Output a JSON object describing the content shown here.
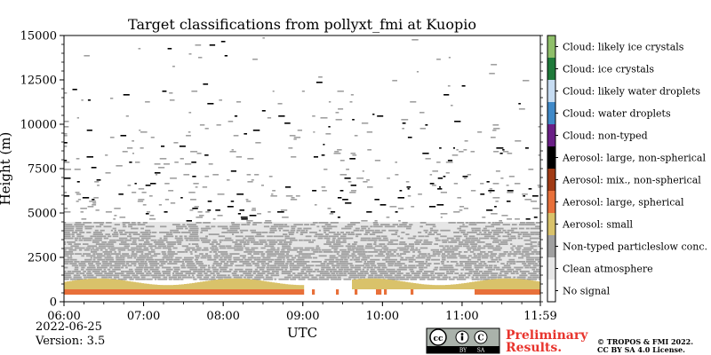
{
  "chart_data": {
    "type": "heatmap",
    "title": "Target classifications from pollyxt_fmi at Kuopio",
    "xlabel": "UTC",
    "ylabel": "Height (m)",
    "x_ticks": [
      "06:00",
      "07:00",
      "08:00",
      "09:00",
      "10:00",
      "11:00",
      "11:59"
    ],
    "y_ticks": [
      "0",
      "2500",
      "5000",
      "7500",
      "10000",
      "12500",
      "15000"
    ],
    "x_range_hours": [
      6.0,
      11.9833
    ],
    "y_range": [
      0,
      15000
    ],
    "layers": [
      {
        "class": "Aerosol: large, spherical",
        "height_range": [
          400,
          700
        ]
      },
      {
        "class": "Aerosol: small",
        "height_range": [
          700,
          1250
        ]
      },
      {
        "class": "Non-typed particleslow conc.",
        "height_range": [
          1250,
          4500
        ],
        "coverage": "dense"
      },
      {
        "class": "Non-typed particleslow conc.",
        "height_range": [
          4500,
          15000
        ],
        "coverage": "sparse"
      }
    ],
    "legend": {
      "position": "right",
      "entries": [
        {
          "label": "Cloud: likely ice crystals",
          "color": "#8fbf6a"
        },
        {
          "label": "Cloud: ice crystals",
          "color": "#1f7a3a"
        },
        {
          "label": "Cloud: likely water droplets",
          "color": "#c6dcf2"
        },
        {
          "label": "Cloud: water droplets",
          "color": "#3f89c8"
        },
        {
          "label": "Cloud: non-typed",
          "color": "#6a1f86"
        },
        {
          "label": "Aerosol: large, non-spherical",
          "color": "#000000"
        },
        {
          "label": "Aerosol: mix., non-spherical",
          "color": "#a13a14"
        },
        {
          "label": "Aerosol: large, spherical",
          "color": "#e8703a"
        },
        {
          "label": "Aerosol: small",
          "color": "#d9c26a"
        },
        {
          "label": "Non-typed particleslow conc.",
          "color": "#a0a0a0"
        },
        {
          "label": "Clean atmosphere",
          "color": "#e6e6e6"
        },
        {
          "label": "No signal",
          "color": "#ffffff"
        }
      ]
    }
  },
  "footer": {
    "date": "2022-06-25",
    "version": "Version: 3.5",
    "preliminary_line1": "Preliminary",
    "preliminary_line2": "Results.",
    "copyright_line1": "© TROPOS & FMI 2022.",
    "copyright_line2": "CC BY SA 4.0 License.",
    "cc_badge_labels": [
      "cc",
      "BY",
      "SA"
    ]
  }
}
